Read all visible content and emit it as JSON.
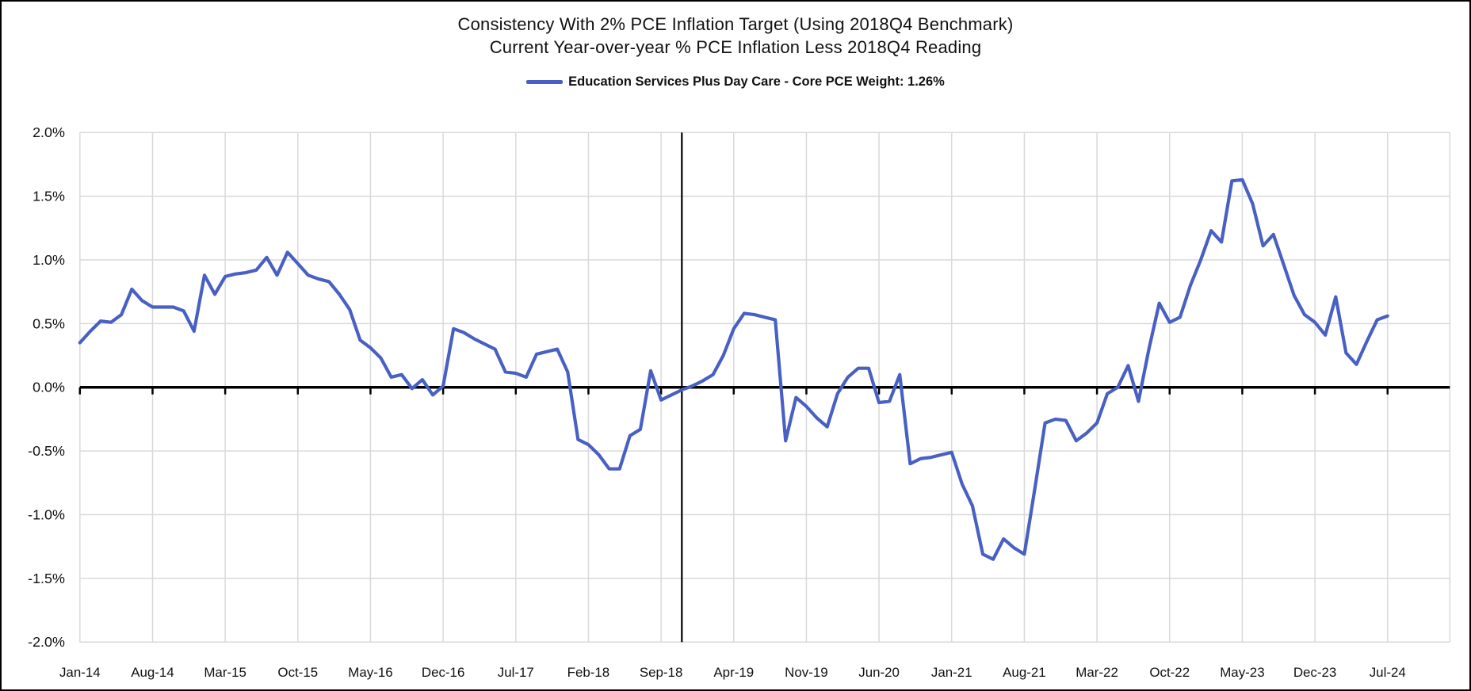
{
  "title": "Consistency With 2% PCE Inflation Target (Using 2018Q4 Benchmark)",
  "subtitle": "Current Year-over-year % PCE Inflation Less 2018Q4 Reading",
  "legend": {
    "label": "Education Services Plus Day Care  - Core PCE Weight: 1.26%"
  },
  "colors": {
    "line": "#4860C3",
    "grid": "#d9d9d9",
    "axis": "#000000",
    "text": "#111111"
  },
  "chart_data": {
    "type": "line",
    "title": "Consistency With 2% PCE Inflation Target (Using 2018Q4 Benchmark)",
    "subtitle": "Current Year-over-year % PCE Inflation Less 2018Q4 Reading",
    "grid": true,
    "legend_position": "top",
    "ylim": [
      -2.0,
      2.0
    ],
    "y_tick_labels": [
      "2.0%",
      "1.5%",
      "1.0%",
      "0.5%",
      "0.0%",
      "-0.5%",
      "-1.0%",
      "-1.5%",
      "-2.0%"
    ],
    "x_first_month": "Jan-14",
    "x_last_month": "Jul-24",
    "x_tick_every_months": 7,
    "x_tick_labels": [
      "Jan-14",
      "Aug-14",
      "Mar-15",
      "Oct-15",
      "May-16",
      "Dec-16",
      "Jul-17",
      "Feb-18",
      "Sep-18",
      "Apr-19",
      "Nov-19",
      "Jun-20",
      "Jan-21",
      "Aug-21",
      "Mar-22",
      "Oct-22",
      "May-23",
      "Dec-23",
      "Jul-24"
    ],
    "benchmark_vline_month_index": 58,
    "series": [
      {
        "name": "Education Services Plus Day Care  - Core PCE Weight: 1.26%",
        "color": "#4860C3",
        "unit": "percent",
        "monthly_values_pct": [
          0.35,
          0.44,
          0.52,
          0.51,
          0.57,
          0.77,
          0.68,
          0.63,
          0.63,
          0.63,
          0.6,
          0.44,
          0.88,
          0.73,
          0.87,
          0.89,
          0.9,
          0.92,
          1.02,
          0.88,
          1.06,
          0.97,
          0.88,
          0.85,
          0.83,
          0.73,
          0.61,
          0.37,
          0.31,
          0.23,
          0.08,
          0.1,
          -0.01,
          0.06,
          -0.06,
          0.01,
          0.46,
          0.43,
          0.38,
          0.34,
          0.3,
          0.12,
          0.11,
          0.08,
          0.26,
          0.28,
          0.3,
          0.12,
          -0.41,
          -0.45,
          -0.53,
          -0.64,
          -0.64,
          -0.38,
          -0.33,
          0.13,
          -0.1,
          -0.06,
          -0.02,
          0.01,
          0.05,
          0.1,
          0.25,
          0.46,
          0.58,
          0.57,
          0.55,
          0.53,
          -0.42,
          -0.08,
          -0.15,
          -0.24,
          -0.31,
          -0.05,
          0.08,
          0.15,
          0.15,
          -0.12,
          -0.11,
          0.1,
          -0.6,
          -0.56,
          -0.55,
          -0.53,
          -0.51,
          -0.76,
          -0.93,
          -1.31,
          -1.35,
          -1.19,
          -1.26,
          -1.31,
          -0.8,
          -0.28,
          -0.25,
          -0.26,
          -0.42,
          -0.36,
          -0.28,
          -0.05,
          0.0,
          0.17,
          -0.11,
          0.3,
          0.66,
          0.51,
          0.55,
          0.8,
          1.0,
          1.23,
          1.14,
          1.62,
          1.63,
          1.44,
          1.11,
          1.2,
          0.96,
          0.72,
          0.57,
          0.51,
          0.41,
          0.71,
          0.27,
          0.18,
          0.36,
          0.53,
          0.56
        ]
      }
    ]
  }
}
